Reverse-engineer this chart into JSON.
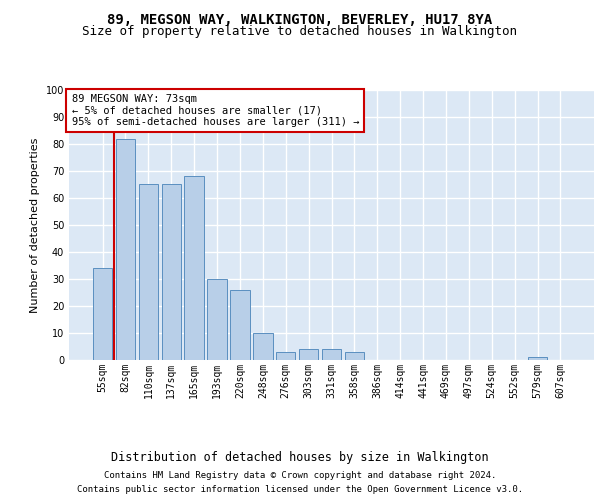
{
  "title1": "89, MEGSON WAY, WALKINGTON, BEVERLEY, HU17 8YA",
  "title2": "Size of property relative to detached houses in Walkington",
  "xlabel": "Distribution of detached houses by size in Walkington",
  "ylabel": "Number of detached properties",
  "footnote1": "Contains HM Land Registry data © Crown copyright and database right 2024.",
  "footnote2": "Contains public sector information licensed under the Open Government Licence v3.0.",
  "bar_labels": [
    "55sqm",
    "82sqm",
    "110sqm",
    "137sqm",
    "165sqm",
    "193sqm",
    "220sqm",
    "248sqm",
    "276sqm",
    "303sqm",
    "331sqm",
    "358sqm",
    "386sqm",
    "414sqm",
    "441sqm",
    "469sqm",
    "497sqm",
    "524sqm",
    "552sqm",
    "579sqm",
    "607sqm"
  ],
  "bar_values": [
    34,
    82,
    65,
    65,
    68,
    30,
    26,
    10,
    3,
    4,
    4,
    3,
    0,
    0,
    0,
    0,
    0,
    0,
    0,
    1,
    0
  ],
  "bar_color": "#b8cfe8",
  "bar_edge_color": "#5a8fc0",
  "highlight_color": "#cc0000",
  "annotation_text": "89 MEGSON WAY: 73sqm\n← 5% of detached houses are smaller (17)\n95% of semi-detached houses are larger (311) →",
  "annotation_box_color": "#ffffff",
  "annotation_box_edge": "#cc0000",
  "ylim": [
    0,
    100
  ],
  "yticks": [
    0,
    10,
    20,
    30,
    40,
    50,
    60,
    70,
    80,
    90,
    100
  ],
  "bg_color": "#dce8f5",
  "grid_color": "#ffffff",
  "title1_fontsize": 10,
  "title2_fontsize": 9,
  "axis_label_fontsize": 8,
  "tick_fontsize": 7,
  "footnote_fontsize": 6.5
}
